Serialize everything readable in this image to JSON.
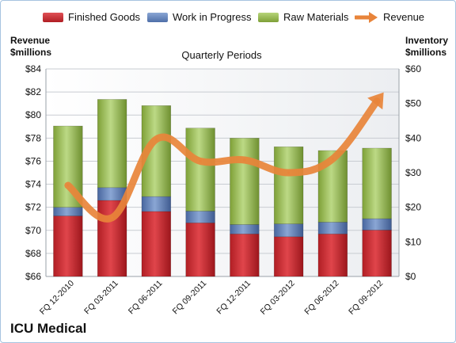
{
  "chart_data": {
    "type": "bar",
    "stacked": true,
    "title": "Quarterly Periods",
    "company": "ICU Medical",
    "ylabel_left": "Revenue\n$millions",
    "ylabel_right": "Inventory\n$millions",
    "categories": [
      "FQ 12-2010",
      "FQ 03-2011",
      "FQ 06-2011",
      "FQ 09-2011",
      "FQ 12-2011",
      "FQ 03-2012",
      "FQ 06-2012",
      "FQ 09-2012"
    ],
    "ylim_left": [
      66,
      84
    ],
    "ylim_right": [
      0,
      60
    ],
    "left_ticks": [
      "$66",
      "$68",
      "$70",
      "$72",
      "$74",
      "$76",
      "$78",
      "$80",
      "$82",
      "$84"
    ],
    "right_ticks": [
      "$0",
      "$10",
      "$20",
      "$30",
      "$40",
      "$50",
      "$60"
    ],
    "series": [
      {
        "name": "Finished Goods",
        "type": "bar",
        "axis": "right",
        "color": "#c0272d",
        "values": [
          17.5,
          22.0,
          18.8,
          15.5,
          12.3,
          11.5,
          12.3,
          13.4
        ]
      },
      {
        "name": "Work in Progress",
        "type": "bar",
        "axis": "right",
        "color": "#4f6fa8",
        "values": [
          2.5,
          3.7,
          4.3,
          3.4,
          2.7,
          3.7,
          3.4,
          3.3
        ]
      },
      {
        "name": "Raw Materials",
        "type": "bar",
        "axis": "right",
        "color": "#8cb043",
        "values": [
          23.5,
          25.5,
          26.3,
          24.0,
          25.0,
          22.3,
          20.7,
          20.4
        ]
      },
      {
        "name": "Revenue",
        "type": "line",
        "axis": "left",
        "color": "#e8843a",
        "values": [
          73.9,
          71.1,
          77.9,
          76.0,
          76.1,
          75.0,
          76.2,
          81.2
        ]
      }
    ],
    "legend_position": "top",
    "grid": true
  }
}
